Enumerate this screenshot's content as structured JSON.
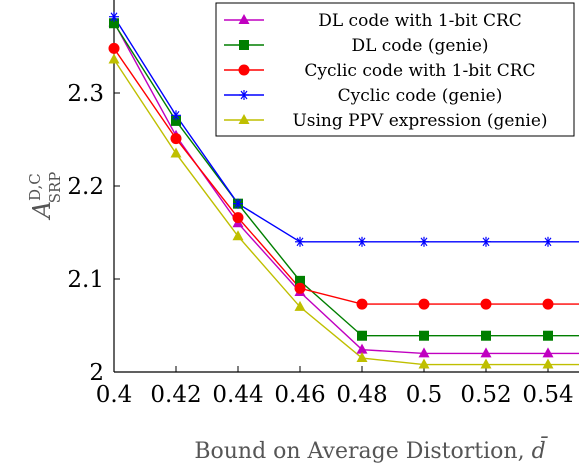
{
  "chart_data": {
    "type": "line",
    "title": "",
    "xlabel": "Bound on Average Distortion, ",
    "xlabel_symbol": "d̄",
    "ylabel": {
      "base": "A",
      "superscript": "D,C",
      "subscript": "SRP"
    },
    "xlim": [
      0.4,
      0.55
    ],
    "ylim": [
      2.0,
      2.4
    ],
    "xticks": [
      "0.4",
      "0.42",
      "0.44",
      "0.46",
      "0.48",
      "0.5",
      "0.52",
      "0.54"
    ],
    "yticks": [
      "2",
      "2.1",
      "2.2",
      "2.3"
    ],
    "grid": false,
    "legend_position": "top-right",
    "x": [
      0.4,
      0.42,
      0.44,
      0.46,
      0.48,
      0.5,
      0.52,
      0.54
    ],
    "series": [
      {
        "name": "DL code with 1-bit CRC",
        "color": "#c000c0",
        "marker": "triangle",
        "values": [
          2.376,
          2.254,
          2.16,
          2.086,
          2.024,
          2.02,
          2.02,
          2.02
        ]
      },
      {
        "name": "DL code (genie)",
        "color": "#007f00",
        "marker": "square",
        "values": [
          2.375,
          2.27,
          2.181,
          2.098,
          2.039,
          2.039,
          2.039,
          2.039
        ]
      },
      {
        "name": "Cyclic code with 1-bit CRC",
        "color": "#ff0000",
        "marker": "circle",
        "values": [
          2.348,
          2.251,
          2.166,
          2.09,
          2.073,
          2.073,
          2.073,
          2.073
        ]
      },
      {
        "name": "Cyclic code (genie)",
        "color": "#0000ff",
        "marker": "star",
        "values": [
          2.382,
          2.276,
          2.181,
          2.14,
          2.14,
          2.14,
          2.14,
          2.14
        ]
      },
      {
        "name": "Using PPV expression (genie)",
        "color": "#bfbf00",
        "marker": "triangle",
        "values": [
          2.336,
          2.235,
          2.146,
          2.07,
          2.015,
          2.008,
          2.008,
          2.008
        ]
      }
    ]
  }
}
